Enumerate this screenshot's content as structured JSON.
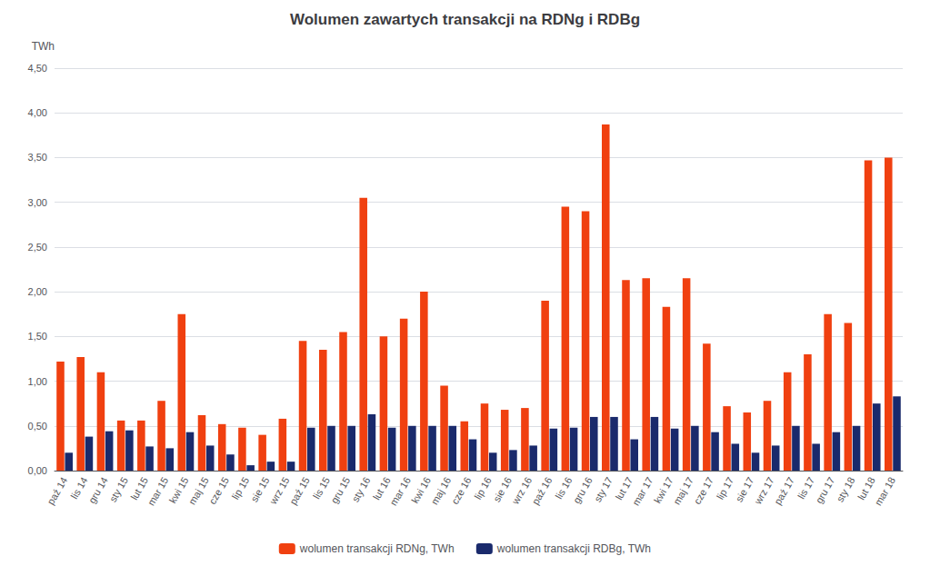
{
  "chart_data": {
    "type": "bar",
    "title": "Wolumen zawartych transakcji na RDNg i RDBg",
    "ylabel": "TWh",
    "categories": [
      "paź 14",
      "lis 14",
      "gru 14",
      "sty 15",
      "lut 15",
      "mar 15",
      "kwi 15",
      "maj 15",
      "cze 15",
      "lip 15",
      "sie 15",
      "wrz 15",
      "paź 15",
      "lis 15",
      "gru 15",
      "sty 16",
      "lut 16",
      "mar 16",
      "kwi 16",
      "maj 16",
      "cze 16",
      "lip 16",
      "sie 16",
      "wrz 16",
      "paź 16",
      "lis 16",
      "gru 16",
      "sty 17",
      "lut 17",
      "mar 17",
      "kwi 17",
      "maj 17",
      "cze 17",
      "lip 17",
      "sie 17",
      "wrz 17",
      "paź 17",
      "lis 17",
      "gru 17",
      "sty 18",
      "lut 18",
      "mar 18"
    ],
    "series": [
      {
        "name": "wolumen transakcji RDNg, TWh",
        "color": "#f04010",
        "values": [
          1.22,
          1.27,
          1.1,
          0.56,
          0.56,
          0.78,
          1.75,
          0.62,
          0.52,
          0.48,
          0.4,
          0.58,
          1.45,
          1.35,
          1.55,
          3.05,
          1.5,
          1.7,
          2.0,
          0.95,
          0.55,
          0.75,
          0.68,
          0.7,
          1.9,
          2.95,
          2.9,
          3.87,
          2.13,
          2.15,
          1.83,
          2.15,
          1.42,
          0.72,
          0.65,
          0.78,
          1.1,
          1.3,
          1.75,
          1.65,
          3.47,
          3.5
        ]
      },
      {
        "name": "wolumen transakcji RDBg, TWh",
        "color": "#1a2a6c",
        "values": [
          0.2,
          0.38,
          0.44,
          0.45,
          0.27,
          0.25,
          0.43,
          0.28,
          0.18,
          0.06,
          0.1,
          0.1,
          0.48,
          0.5,
          0.5,
          0.63,
          0.48,
          0.5,
          0.5,
          0.5,
          0.35,
          0.2,
          0.23,
          0.28,
          0.47,
          0.48,
          0.6,
          0.6,
          0.35,
          0.6,
          0.47,
          0.5,
          0.43,
          0.3,
          0.2,
          0.28,
          0.5,
          0.3,
          0.43,
          0.5,
          0.75,
          0.83
        ]
      }
    ],
    "ylim": [
      0,
      4.5
    ],
    "yticks": [
      {
        "value": 0.0,
        "label": "0,00"
      },
      {
        "value": 0.5,
        "label": "0,50"
      },
      {
        "value": 1.0,
        "label": "1,00"
      },
      {
        "value": 1.5,
        "label": "1,50"
      },
      {
        "value": 2.0,
        "label": "2,00"
      },
      {
        "value": 2.5,
        "label": "2,50"
      },
      {
        "value": 3.0,
        "label": "3,00"
      },
      {
        "value": 3.5,
        "label": "3,50"
      },
      {
        "value": 4.0,
        "label": "4,00"
      },
      {
        "value": 4.5,
        "label": "4,50"
      }
    ],
    "grid": true,
    "legend": "bottom"
  }
}
